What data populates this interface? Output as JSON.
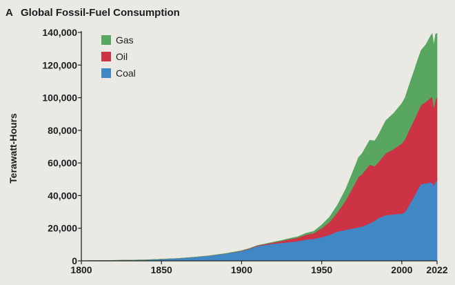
{
  "chart_data": {
    "type": "area",
    "stacked": true,
    "panel_label": "A",
    "title": "Global Fossil-Fuel Consumption",
    "xlabel": "",
    "ylabel": "Terawatt-Hours",
    "xlim": [
      1800,
      2022
    ],
    "ylim": [
      0,
      140000
    ],
    "x_ticks": [
      1800,
      1850,
      1900,
      1950,
      2000,
      2022
    ],
    "y_ticks": [
      0,
      20000,
      40000,
      60000,
      80000,
      100000,
      120000,
      140000
    ],
    "y_tick_labels": [
      "0",
      "20,000",
      "40,000",
      "60,000",
      "80,000",
      "100,000",
      "120,000",
      "140,000"
    ],
    "grid": false,
    "legend_position": "top-left",
    "x": [
      1800,
      1820,
      1840,
      1850,
      1860,
      1870,
      1880,
      1890,
      1900,
      1905,
      1910,
      1915,
      1920,
      1925,
      1930,
      1935,
      1940,
      1945,
      1950,
      1955,
      1960,
      1965,
      1970,
      1973,
      1975,
      1980,
      1983,
      1985,
      1990,
      1995,
      2000,
      2002,
      2005,
      2008,
      2010,
      2012,
      2015,
      2018,
      2019,
      2020,
      2021,
      2022
    ],
    "series": [
      {
        "name": "Coal",
        "color": "#3f88c5",
        "values": [
          100,
          300,
          600,
          1000,
          1500,
          2200,
          3100,
          4400,
          6000,
          7300,
          9000,
          9800,
          10500,
          11000,
          11500,
          12000,
          13000,
          13500,
          14500,
          16000,
          18000,
          19000,
          20000,
          20500,
          21000,
          23000,
          24500,
          26000,
          28000,
          28500,
          29000,
          30000,
          35000,
          40000,
          44000,
          47000,
          47500,
          48000,
          47800,
          46000,
          48500,
          49000
        ]
      },
      {
        "name": "Oil",
        "color": "#cc3345",
        "values": [
          0,
          0,
          0,
          0,
          0,
          20,
          50,
          100,
          200,
          300,
          400,
          500,
          800,
          1200,
          1800,
          2200,
          3000,
          3500,
          5500,
          8000,
          12000,
          18000,
          26000,
          31000,
          32000,
          36000,
          33500,
          34000,
          38000,
          40000,
          43000,
          44500,
          46000,
          47000,
          47500,
          48500,
          50000,
          52000,
          52500,
          48000,
          50500,
          51000
        ]
      },
      {
        "name": "Gas",
        "color": "#58a660",
        "values": [
          0,
          0,
          0,
          0,
          0,
          0,
          10,
          20,
          50,
          80,
          120,
          170,
          250,
          350,
          500,
          600,
          900,
          1100,
          2000,
          3000,
          4500,
          7000,
          10000,
          12000,
          12500,
          15000,
          15500,
          16500,
          20000,
          22000,
          24500,
          25500,
          28000,
          30500,
          32000,
          33500,
          35000,
          38000,
          39000,
          38000,
          40000,
          39500
        ]
      }
    ]
  }
}
